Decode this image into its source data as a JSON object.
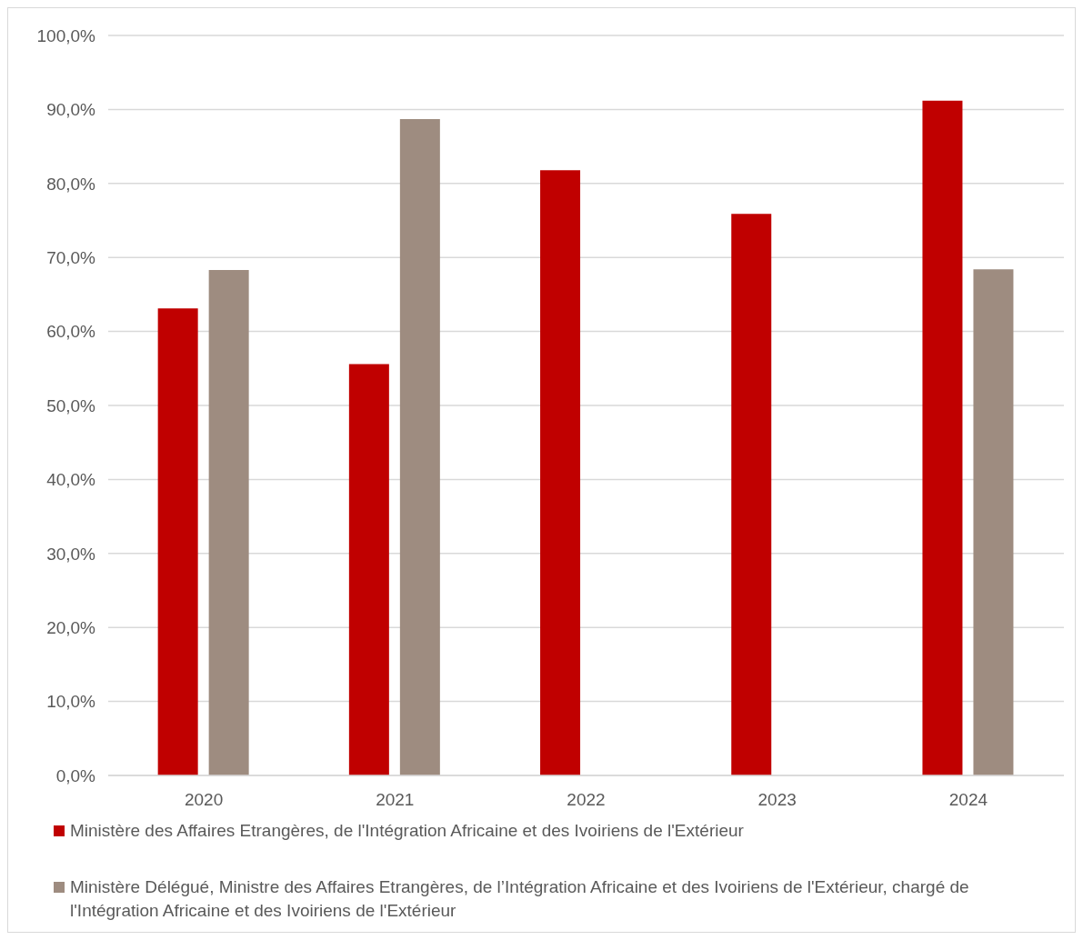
{
  "chart_data": {
    "type": "bar",
    "categories": [
      "2020",
      "2021",
      "2022",
      "2023",
      "2024"
    ],
    "series": [
      {
        "name": "Ministère des Affaires Etrangères, de l'Intégration Africaine et des Ivoiriens de l'Extérieur",
        "color": "#c00000",
        "values": [
          63.1,
          55.6,
          81.8,
          75.9,
          91.2
        ]
      },
      {
        "name": "Ministère Délégué, Ministre des Affaires Etrangères, de l’Intégration Africaine et des Ivoiriens de l'Extérieur, chargé de l'Intégration Africaine et des Ivoiriens de l'Extérieur",
        "color": "#9e8c80",
        "values": [
          68.3,
          88.7,
          null,
          null,
          68.4
        ]
      }
    ],
    "ylim": [
      0,
      100
    ],
    "yticks": [
      {
        "value": 0,
        "label": "0,0%"
      },
      {
        "value": 10,
        "label": "10,0%"
      },
      {
        "value": 20,
        "label": "20,0%"
      },
      {
        "value": 30,
        "label": "30,0%"
      },
      {
        "value": 40,
        "label": "40,0%"
      },
      {
        "value": 50,
        "label": "50,0%"
      },
      {
        "value": 60,
        "label": "60,0%"
      },
      {
        "value": 70,
        "label": "70,0%"
      },
      {
        "value": 80,
        "label": "80,0%"
      },
      {
        "value": 90,
        "label": "90,0%"
      },
      {
        "value": 100,
        "label": "100,0%"
      }
    ],
    "grid": "y",
    "legend": "bottom"
  }
}
